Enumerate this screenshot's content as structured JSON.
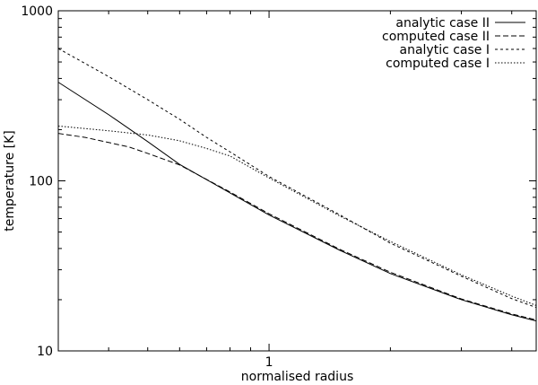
{
  "chart_data": {
    "type": "line",
    "xlabel": "normalised radius",
    "ylabel": "temperature [K]",
    "x_scale": "log",
    "y_scale": "log",
    "xlim": [
      0.3,
      4.6
    ],
    "ylim": [
      10,
      1000
    ],
    "x_ticks": [
      {
        "value": 1,
        "label": "1"
      }
    ],
    "y_ticks": [
      {
        "value": 10,
        "label": "10"
      },
      {
        "value": 100,
        "label": "100"
      },
      {
        "value": 1000,
        "label": "1000"
      }
    ],
    "grid": false,
    "legend_position": "top-right",
    "series": [
      {
        "name": "analytic case II",
        "dash": "solid",
        "points": [
          [
            0.3,
            380
          ],
          [
            0.4,
            245
          ],
          [
            0.5,
            170
          ],
          [
            0.6,
            125
          ],
          [
            0.8,
            85
          ],
          [
            1.0,
            63
          ],
          [
            1.5,
            39
          ],
          [
            2.0,
            28.5
          ],
          [
            3.0,
            20
          ],
          [
            4.0,
            16.3
          ],
          [
            4.6,
            15
          ]
        ]
      },
      {
        "name": "computed case II",
        "dash": "dashed",
        "points": [
          [
            0.3,
            190
          ],
          [
            0.35,
            180
          ],
          [
            0.4,
            168
          ],
          [
            0.45,
            158
          ],
          [
            0.5,
            145
          ],
          [
            0.6,
            124
          ],
          [
            0.8,
            86
          ],
          [
            1.0,
            64
          ],
          [
            1.5,
            39.5
          ],
          [
            2.0,
            29
          ],
          [
            3.0,
            20.2
          ],
          [
            4.0,
            16.5
          ],
          [
            4.6,
            15.2
          ]
        ]
      },
      {
        "name": "analytic case I",
        "dash": "dotted-short",
        "points": [
          [
            0.3,
            600
          ],
          [
            0.4,
            410
          ],
          [
            0.5,
            300
          ],
          [
            0.6,
            230
          ],
          [
            0.7,
            180
          ],
          [
            0.8,
            148
          ],
          [
            1.0,
            106
          ],
          [
            1.5,
            63
          ],
          [
            2.0,
            43
          ],
          [
            3.0,
            27.5
          ],
          [
            4.0,
            20.3
          ],
          [
            4.6,
            18
          ]
        ]
      },
      {
        "name": "computed case I",
        "dash": "dotted",
        "points": [
          [
            0.3,
            210
          ],
          [
            0.4,
            197
          ],
          [
            0.5,
            186
          ],
          [
            0.6,
            172
          ],
          [
            0.7,
            155
          ],
          [
            0.8,
            140
          ],
          [
            1.0,
            104
          ],
          [
            1.5,
            62
          ],
          [
            2.0,
            44
          ],
          [
            3.0,
            28
          ],
          [
            4.0,
            21
          ],
          [
            4.6,
            18.5
          ]
        ]
      }
    ]
  }
}
